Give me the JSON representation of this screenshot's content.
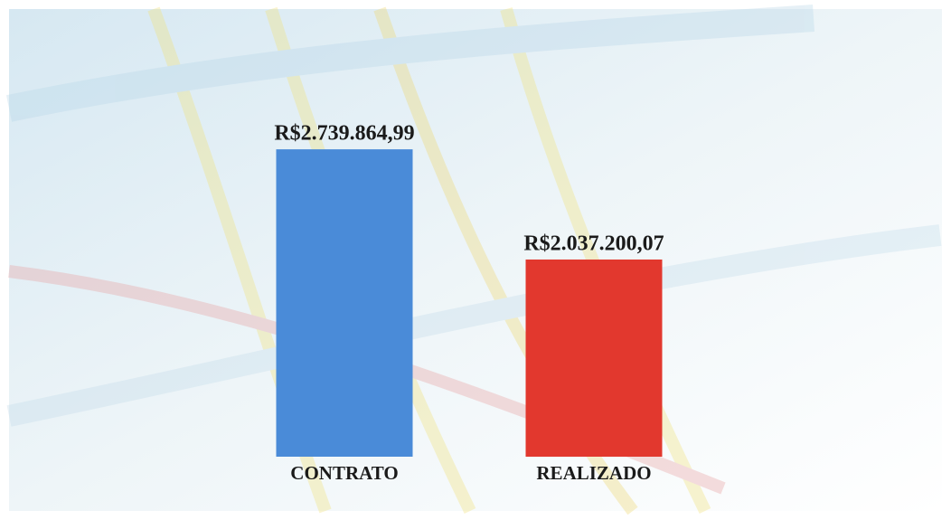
{
  "chart_data": {
    "type": "bar",
    "categories": [
      "CONTRATO",
      "REALIZADO"
    ],
    "values": [
      2739864.99,
      2037200.07
    ],
    "value_labels": [
      "R$2.739.864,99",
      "R$2.037.200,07"
    ],
    "colors": [
      "#4a8bd8",
      "#e2382e"
    ],
    "ylim": [
      780000,
      3000000
    ]
  }
}
